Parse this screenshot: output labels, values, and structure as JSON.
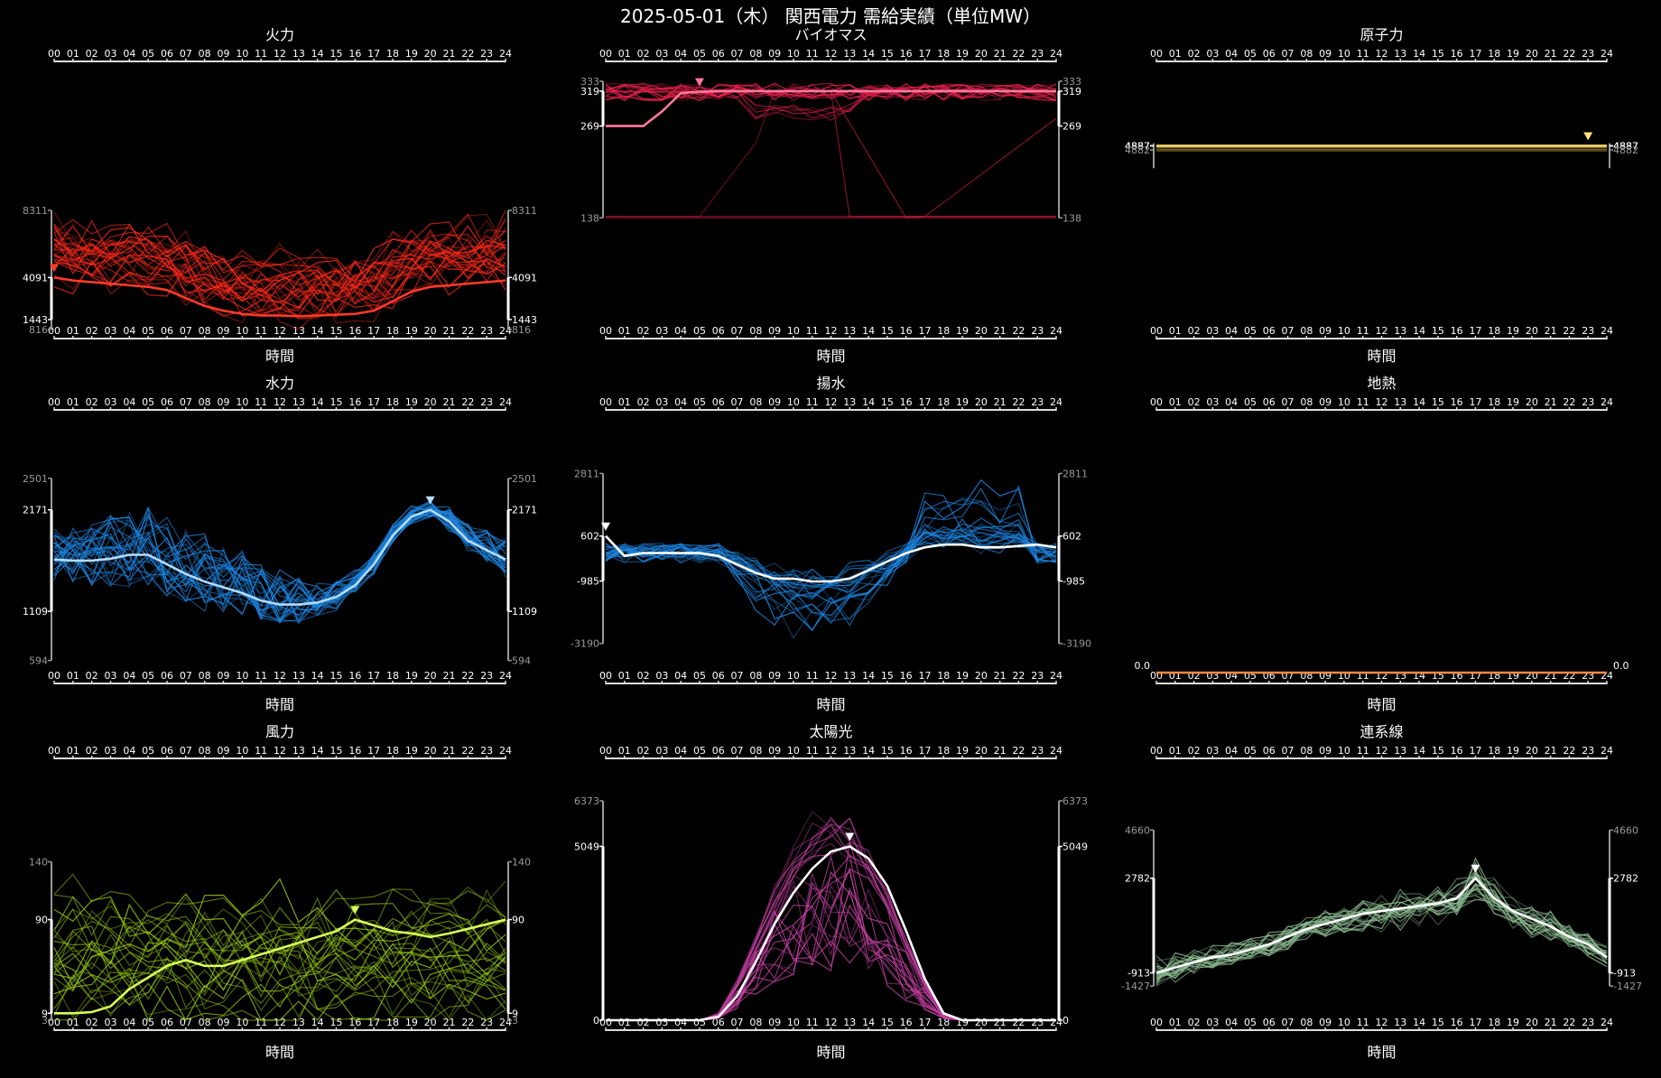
{
  "title": "2025-05-01（木） 関西電力 需給実績（単位MW）",
  "xlabel": "時間",
  "hours": [
    "00",
    "01",
    "02",
    "03",
    "04",
    "05",
    "06",
    "07",
    "08",
    "09",
    "10",
    "11",
    "12",
    "13",
    "14",
    "15",
    "16",
    "17",
    "18",
    "19",
    "20",
    "21",
    "22",
    "23",
    "24"
  ],
  "chart_data": [
    {
      "type": "line",
      "title": "火力",
      "color": "#ff2a1a",
      "highlight": "#ff3a2a",
      "ylim": [
        816,
        8311
      ],
      "ticks": {
        "max": "8311",
        "hi": "4091",
        "lo": "1443",
        "min": "816"
      },
      "marker_hour": 0,
      "series_count": 30,
      "shape": "thermal",
      "main": [
        4091,
        3900,
        3800,
        3700,
        3600,
        3500,
        3300,
        2800,
        2300,
        2000,
        1800,
        1700,
        1700,
        1650,
        1700,
        1750,
        1800,
        2000,
        2600,
        3200,
        3500,
        3600,
        3700,
        3800,
        3900
      ]
    },
    {
      "type": "line",
      "title": "バイオマス",
      "color": "#e8214d",
      "highlight": "#ff7aa0",
      "ylim": [
        138,
        333
      ],
      "ticks": {
        "max": "333",
        "hi": "319",
        "lo": "269",
        "min": "138"
      },
      "marker_hour": 5,
      "series_count": 22,
      "shape": "biomass",
      "main": [
        269,
        269,
        269,
        290,
        316,
        318,
        319,
        319,
        319,
        319,
        319,
        319,
        319,
        319,
        319,
        319,
        319,
        319,
        319,
        319,
        319,
        319,
        319,
        319,
        319
      ]
    },
    {
      "type": "line",
      "title": "原子力",
      "color": "#ffd54a",
      "highlight": "#ffe27a",
      "ylim": [
        4860,
        4890
      ],
      "ticks": {
        "max": "4887",
        "hi": "4887",
        "lo": "4887",
        "min": "4882"
      },
      "marker_hour": 23,
      "series_count": 4,
      "shape": "flat",
      "main": [
        4887,
        4887,
        4887,
        4887,
        4887,
        4887,
        4887,
        4887,
        4887,
        4887,
        4887,
        4887,
        4887,
        4887,
        4887,
        4887,
        4887,
        4887,
        4887,
        4887,
        4887,
        4887,
        4887,
        4887,
        4887
      ]
    },
    {
      "type": "line",
      "title": "水力",
      "color": "#1e88e5",
      "highlight": "#b3dcff",
      "ylim": [
        594,
        2501
      ],
      "ticks": {
        "max": "2501",
        "hi": "2171",
        "lo": "1109",
        "min": "594"
      },
      "marker_hour": 20,
      "series_count": 28,
      "shape": "hydro",
      "main": [
        1650,
        1640,
        1640,
        1660,
        1700,
        1700,
        1600,
        1500,
        1420,
        1360,
        1300,
        1220,
        1180,
        1180,
        1200,
        1260,
        1380,
        1600,
        1900,
        2100,
        2171,
        2050,
        1850,
        1750,
        1650
      ]
    },
    {
      "type": "line",
      "title": "揚水",
      "color": "#1e88e5",
      "highlight": "#ffffff",
      "ylim": [
        -3190,
        2811
      ],
      "ticks": {
        "max": "2811",
        "hi": "602",
        "lo": "-985",
        "min": "-3190"
      },
      "marker_hour": 0,
      "series_count": 24,
      "shape": "pumped",
      "main": [
        602,
        -100,
        0,
        0,
        0,
        0,
        -100,
        -400,
        -700,
        -900,
        -900,
        -1000,
        -1000,
        -900,
        -600,
        -300,
        0,
        200,
        300,
        300,
        200,
        200,
        250,
        300,
        200
      ]
    },
    {
      "type": "line",
      "title": "地熱",
      "color": "#ff8a3d",
      "highlight": "#ff8a3d",
      "ylim": [
        0,
        1
      ],
      "ticks": {
        "max": "",
        "hi": "0.0",
        "lo": "",
        "min": ""
      },
      "marker_hour": null,
      "series_count": 1,
      "shape": "zero",
      "main": [
        0,
        0,
        0,
        0,
        0,
        0,
        0,
        0,
        0,
        0,
        0,
        0,
        0,
        0,
        0,
        0,
        0,
        0,
        0,
        0,
        0,
        0,
        0,
        0,
        0
      ]
    },
    {
      "type": "line",
      "title": "風力",
      "color": "#9acd14",
      "highlight": "#d8ff5a",
      "ylim": [
        3,
        140
      ],
      "ticks": {
        "max": "140",
        "hi": "90",
        "lo": "9",
        "min": "3"
      },
      "marker_hour": 16,
      "series_count": 28,
      "shape": "wind",
      "main": [
        9,
        9,
        10,
        15,
        30,
        40,
        50,
        55,
        50,
        50,
        55,
        60,
        65,
        70,
        75,
        80,
        90,
        85,
        80,
        78,
        75,
        78,
        82,
        86,
        90
      ]
    },
    {
      "type": "line",
      "title": "太陽光",
      "color": "#c040a0",
      "highlight": "#ffffff",
      "ylim": [
        0,
        6373
      ],
      "ticks": {
        "max": "6373",
        "hi": "5049",
        "lo": "0",
        "min": ""
      },
      "marker_hour": 13,
      "series_count": 26,
      "shape": "solar",
      "main": [
        0,
        0,
        0,
        0,
        0,
        0,
        100,
        700,
        1700,
        2800,
        3700,
        4400,
        4900,
        5049,
        4700,
        3900,
        2600,
        1200,
        200,
        0,
        0,
        0,
        0,
        0,
        0
      ]
    },
    {
      "type": "line",
      "title": "連系線",
      "color": "#8fbf94",
      "highlight": "#ffffff",
      "ylim": [
        -1427,
        4660
      ],
      "ticks": {
        "max": "4660",
        "hi": "2782",
        "lo": "-913",
        "min": "-1427"
      },
      "marker_hour": 17,
      "series_count": 24,
      "shape": "tie",
      "main": [
        -913,
        -700,
        -500,
        -300,
        -200,
        0,
        200,
        500,
        800,
        1000,
        1200,
        1400,
        1500,
        1600,
        1700,
        1800,
        2000,
        2782,
        2000,
        1500,
        1200,
        900,
        500,
        200,
        -300
      ]
    }
  ]
}
